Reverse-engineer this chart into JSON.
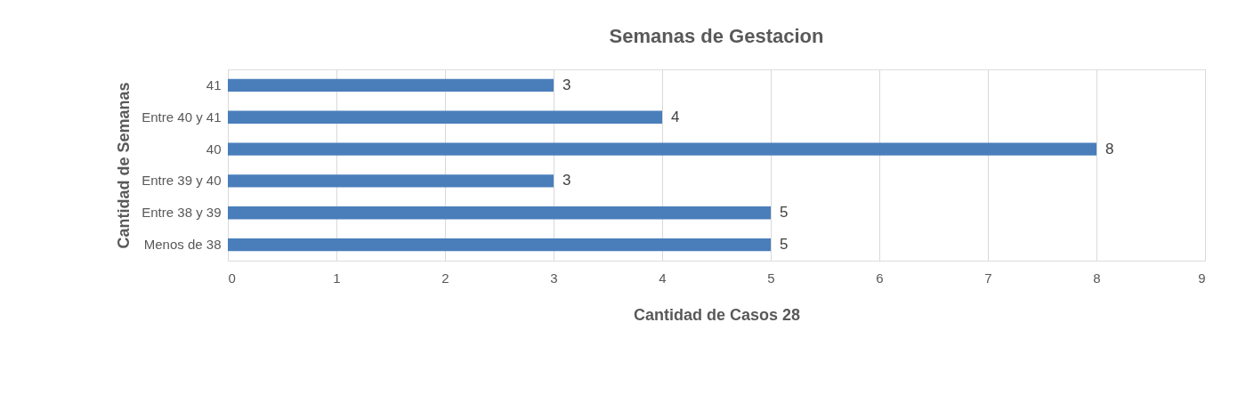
{
  "chart_data": {
    "type": "bar",
    "orientation": "horizontal",
    "title": "Semanas de Gestacion",
    "xlabel": "Cantidad de Casos 28",
    "ylabel": "Cantidad de Semanas",
    "categories": [
      "41",
      "Entre 40 y 41",
      "40",
      "Entre 39 y 40",
      "Entre 38 y 39",
      "Menos de 38"
    ],
    "values": [
      3,
      4,
      8,
      3,
      5,
      5
    ],
    "color": "#4a7ebb",
    "xlim": [
      0,
      9
    ],
    "xticks": [
      0,
      1,
      2,
      3,
      4,
      5,
      6,
      7,
      8,
      9
    ],
    "grid": "x",
    "data_labels": true
  }
}
